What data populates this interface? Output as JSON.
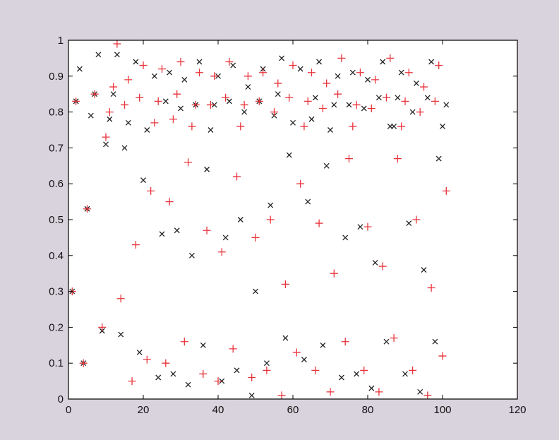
{
  "chart_data": {
    "type": "scatter",
    "title": "",
    "xlabel": "",
    "ylabel": "",
    "xlim": [
      0,
      120
    ],
    "ylim": [
      0,
      1
    ],
    "x_ticks": [
      0,
      20,
      40,
      60,
      80,
      100,
      120
    ],
    "y_ticks": [
      0,
      0.1,
      0.2,
      0.3,
      0.4,
      0.5,
      0.6,
      0.7,
      0.8,
      0.9,
      1
    ],
    "grid": false,
    "legend": "none",
    "colors": {
      "x_marker": "#222222",
      "plus_marker": "#e8333a",
      "background": "#d9d3dd",
      "plot_area": "#ffffff"
    },
    "series": [
      {
        "marker": "x",
        "color": "#222222",
        "points": [
          [
            1,
            0.3
          ],
          [
            2,
            0.83
          ],
          [
            3,
            0.92
          ],
          [
            4,
            0.1
          ],
          [
            5,
            0.53
          ],
          [
            6,
            0.79
          ],
          [
            7,
            0.85
          ],
          [
            8,
            0.96
          ],
          [
            9,
            0.19
          ],
          [
            10,
            0.71
          ],
          [
            11,
            0.78
          ],
          [
            12,
            0.85
          ],
          [
            13,
            0.96
          ],
          [
            14,
            0.18
          ],
          [
            15,
            0.7
          ],
          [
            16,
            0.77
          ],
          [
            18,
            0.94
          ],
          [
            19,
            0.13
          ],
          [
            20,
            0.61
          ],
          [
            21,
            0.75
          ],
          [
            23,
            0.9
          ],
          [
            24,
            0.06
          ],
          [
            25,
            0.46
          ],
          [
            26,
            0.83
          ],
          [
            27,
            0.91
          ],
          [
            28,
            0.07
          ],
          [
            29,
            0.47
          ],
          [
            30,
            0.81
          ],
          [
            31,
            0.89
          ],
          [
            32,
            0.04
          ],
          [
            33,
            0.4
          ],
          [
            34,
            0.82
          ],
          [
            35,
            0.94
          ],
          [
            36,
            0.15
          ],
          [
            37,
            0.64
          ],
          [
            38,
            0.75
          ],
          [
            39,
            0.82
          ],
          [
            40,
            0.9
          ],
          [
            41,
            0.05
          ],
          [
            42,
            0.45
          ],
          [
            43,
            0.83
          ],
          [
            44,
            0.93
          ],
          [
            45,
            0.08
          ],
          [
            46,
            0.5
          ],
          [
            47,
            0.8
          ],
          [
            48,
            0.87
          ],
          [
            49,
            0.01
          ],
          [
            50,
            0.3
          ],
          [
            51,
            0.83
          ],
          [
            52,
            0.92
          ],
          [
            53,
            0.1
          ],
          [
            54,
            0.54
          ],
          [
            55,
            0.79
          ],
          [
            56,
            0.85
          ],
          [
            57,
            0.95
          ],
          [
            58,
            0.17
          ],
          [
            59,
            0.68
          ],
          [
            60,
            0.77
          ],
          [
            62,
            0.92
          ],
          [
            63,
            0.11
          ],
          [
            64,
            0.55
          ],
          [
            65,
            0.78
          ],
          [
            66,
            0.84
          ],
          [
            67,
            0.94
          ],
          [
            68,
            0.15
          ],
          [
            69,
            0.65
          ],
          [
            70,
            0.75
          ],
          [
            71,
            0.82
          ],
          [
            72,
            0.9
          ],
          [
            73,
            0.06
          ],
          [
            74,
            0.45
          ],
          [
            75,
            0.82
          ],
          [
            76,
            0.91
          ],
          [
            77,
            0.07
          ],
          [
            78,
            0.48
          ],
          [
            79,
            0.81
          ],
          [
            80,
            0.89
          ],
          [
            81,
            0.03
          ],
          [
            82,
            0.38
          ],
          [
            83,
            0.84
          ],
          [
            84,
            0.94
          ],
          [
            85,
            0.16
          ],
          [
            86,
            0.76
          ],
          [
            87,
            0.76
          ],
          [
            88,
            0.84
          ],
          [
            89,
            0.91
          ],
          [
            90,
            0.07
          ],
          [
            91,
            0.49
          ],
          [
            92,
            0.8
          ],
          [
            93,
            0.88
          ],
          [
            94,
            0.02
          ],
          [
            95,
            0.36
          ],
          [
            96,
            0.84
          ],
          [
            97,
            0.94
          ],
          [
            98,
            0.16
          ],
          [
            99,
            0.67
          ],
          [
            100,
            0.76
          ],
          [
            101,
            0.82
          ]
        ]
      },
      {
        "marker": "+",
        "color": "#e8333a",
        "points": [
          [
            1,
            0.3
          ],
          [
            2,
            0.83
          ],
          [
            4,
            0.1
          ],
          [
            5,
            0.53
          ],
          [
            7,
            0.85
          ],
          [
            9,
            0.2
          ],
          [
            10,
            0.73
          ],
          [
            11,
            0.8
          ],
          [
            12,
            0.87
          ],
          [
            13,
            0.99
          ],
          [
            14,
            0.28
          ],
          [
            15,
            0.82
          ],
          [
            16,
            0.89
          ],
          [
            17,
            0.05
          ],
          [
            18,
            0.43
          ],
          [
            19,
            0.84
          ],
          [
            20,
            0.93
          ],
          [
            21,
            0.11
          ],
          [
            22,
            0.58
          ],
          [
            23,
            0.77
          ],
          [
            24,
            0.83
          ],
          [
            25,
            0.92
          ],
          [
            26,
            0.1
          ],
          [
            27,
            0.55
          ],
          [
            28,
            0.78
          ],
          [
            29,
            0.85
          ],
          [
            30,
            0.94
          ],
          [
            31,
            0.16
          ],
          [
            32,
            0.66
          ],
          [
            33,
            0.76
          ],
          [
            34,
            0.82
          ],
          [
            35,
            0.91
          ],
          [
            36,
            0.07
          ],
          [
            37,
            0.47
          ],
          [
            38,
            0.82
          ],
          [
            39,
            0.9
          ],
          [
            40,
            0.05
          ],
          [
            41,
            0.41
          ],
          [
            42,
            0.84
          ],
          [
            43,
            0.94
          ],
          [
            44,
            0.14
          ],
          [
            45,
            0.62
          ],
          [
            46,
            0.76
          ],
          [
            47,
            0.82
          ],
          [
            48,
            0.9
          ],
          [
            49,
            0.06
          ],
          [
            50,
            0.45
          ],
          [
            51,
            0.83
          ],
          [
            52,
            0.91
          ],
          [
            53,
            0.08
          ],
          [
            54,
            0.5
          ],
          [
            55,
            0.8
          ],
          [
            56,
            0.88
          ],
          [
            57,
            0.01
          ],
          [
            58,
            0.32
          ],
          [
            59,
            0.84
          ],
          [
            60,
            0.93
          ],
          [
            61,
            0.13
          ],
          [
            62,
            0.6
          ],
          [
            63,
            0.76
          ],
          [
            64,
            0.83
          ],
          [
            65,
            0.91
          ],
          [
            66,
            0.08
          ],
          [
            67,
            0.49
          ],
          [
            68,
            0.81
          ],
          [
            69,
            0.88
          ],
          [
            70,
            0.02
          ],
          [
            71,
            0.35
          ],
          [
            72,
            0.85
          ],
          [
            73,
            0.95
          ],
          [
            74,
            0.16
          ],
          [
            75,
            0.67
          ],
          [
            76,
            0.76
          ],
          [
            77,
            0.82
          ],
          [
            78,
            0.91
          ],
          [
            79,
            0.08
          ],
          [
            80,
            0.48
          ],
          [
            81,
            0.81
          ],
          [
            82,
            0.89
          ],
          [
            83,
            0.02
          ],
          [
            84,
            0.37
          ],
          [
            85,
            0.84
          ],
          [
            86,
            0.95
          ],
          [
            87,
            0.17
          ],
          [
            88,
            0.67
          ],
          [
            89,
            0.76
          ],
          [
            90,
            0.83
          ],
          [
            91,
            0.91
          ],
          [
            92,
            0.08
          ],
          [
            93,
            0.5
          ],
          [
            94,
            0.8
          ],
          [
            95,
            0.87
          ],
          [
            96,
            0.01
          ],
          [
            97,
            0.31
          ],
          [
            98,
            0.83
          ],
          [
            99,
            0.93
          ],
          [
            100,
            0.12
          ],
          [
            101,
            0.58
          ]
        ]
      }
    ]
  }
}
